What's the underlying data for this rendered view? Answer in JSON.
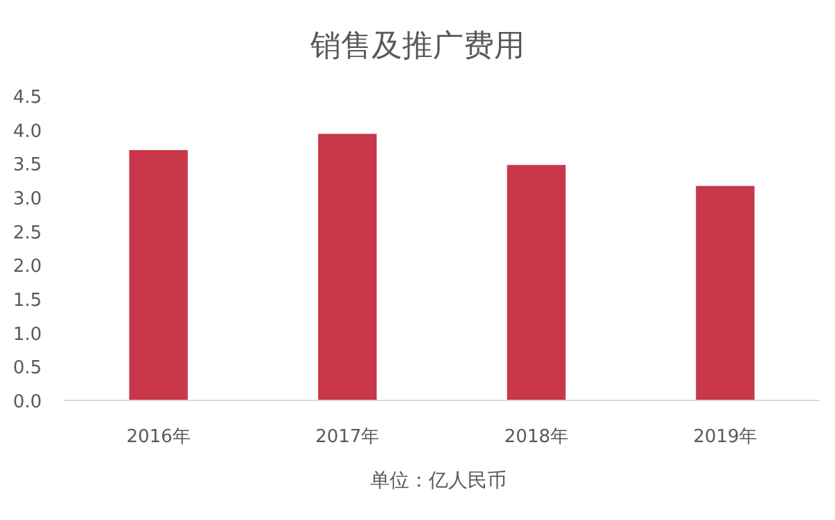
{
  "chart_data": {
    "type": "bar",
    "title": "销售及推广费用",
    "categories": [
      "2016年",
      "2017年",
      "2018年",
      "2019年"
    ],
    "values": [
      3.7,
      3.94,
      3.48,
      3.17
    ],
    "color": "#c8374a",
    "ylim": [
      0,
      4.5
    ],
    "yticks": [
      {
        "value": 0,
        "label": "0.0"
      },
      {
        "value": 0.5,
        "label": "0.5"
      },
      {
        "value": 1,
        "label": "1.0"
      },
      {
        "value": 1.5,
        "label": "1.5"
      },
      {
        "value": 2,
        "label": "2.0"
      },
      {
        "value": 2.5,
        "label": "2.5"
      },
      {
        "value": 3,
        "label": "3.0"
      },
      {
        "value": 3.5,
        "label": "3.5"
      },
      {
        "value": 4,
        "label": "4.0"
      },
      {
        "value": 4.5,
        "label": "4.5"
      }
    ],
    "annotations": [
      "单位：亿人民币"
    ]
  }
}
